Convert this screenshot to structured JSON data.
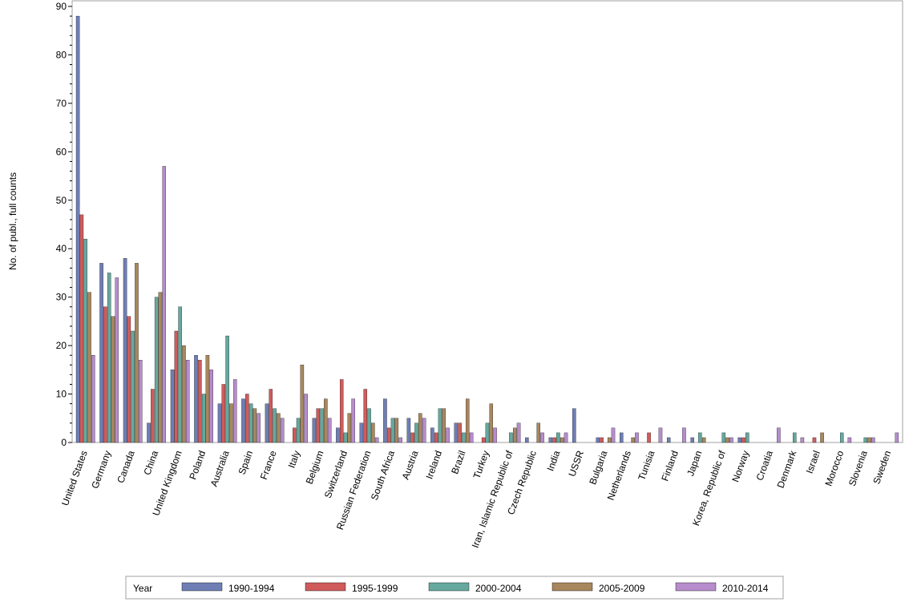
{
  "chart_data": {
    "type": "bar",
    "title": "",
    "xlabel": "",
    "ylabel": "No. of publ., full counts",
    "ylim": [
      0,
      90
    ],
    "yticks": [
      0,
      10,
      20,
      30,
      40,
      50,
      60,
      70,
      80,
      90
    ],
    "grid": false,
    "legend_position": "bottom",
    "legend_title": "Year",
    "categories": [
      "United States",
      "Germany",
      "Canada",
      "China",
      "United Kingdom",
      "Poland",
      "Australia",
      "Spain",
      "France",
      "Italy",
      "Belgium",
      "Switzerland",
      "Russian Federation",
      "South Africa",
      "Austria",
      "Ireland",
      "Brazil",
      "Turkey",
      "Iran, Islamic Republic of",
      "Czech Republic",
      "India",
      "USSR",
      "Bulgaria",
      "Netherlands",
      "Tunisia",
      "Finland",
      "Japan",
      "Korea, Republic of",
      "Norway",
      "Croatia",
      "Denmark",
      "Israel",
      "Morocco",
      "Slovenia",
      "Sweden"
    ],
    "series": [
      {
        "name": "1990-1994",
        "color": "#6f7fb5",
        "values": [
          88,
          37,
          38,
          4,
          15,
          18,
          8,
          9,
          8,
          0,
          5,
          3,
          4,
          9,
          5,
          3,
          4,
          0,
          0,
          1,
          1,
          7,
          1,
          2,
          0,
          1,
          1,
          0,
          1,
          0,
          0,
          0,
          0,
          0,
          0
        ]
      },
      {
        "name": "1995-1999",
        "color": "#d05b5b",
        "values": [
          47,
          28,
          26,
          11,
          23,
          17,
          12,
          10,
          11,
          3,
          7,
          13,
          11,
          3,
          2,
          2,
          4,
          1,
          0,
          0,
          1,
          0,
          1,
          0,
          2,
          0,
          0,
          0,
          1,
          0,
          0,
          1,
          0,
          0,
          0
        ]
      },
      {
        "name": "2000-2004",
        "color": "#66a89e",
        "values": [
          42,
          35,
          23,
          30,
          28,
          10,
          22,
          8,
          7,
          5,
          7,
          2,
          7,
          5,
          4,
          7,
          2,
          4,
          2,
          0,
          2,
          0,
          0,
          0,
          0,
          0,
          2,
          2,
          2,
          0,
          2,
          0,
          2,
          1,
          0
        ]
      },
      {
        "name": "2005-2009",
        "color": "#a8875f",
        "values": [
          31,
          26,
          37,
          31,
          20,
          18,
          8,
          7,
          6,
          16,
          9,
          6,
          4,
          5,
          6,
          7,
          9,
          8,
          3,
          4,
          1,
          0,
          1,
          1,
          0,
          0,
          1,
          1,
          0,
          0,
          0,
          2,
          0,
          1,
          0
        ]
      },
      {
        "name": "2010-2014",
        "color": "#b68ccd",
        "values": [
          18,
          34,
          17,
          57,
          17,
          15,
          13,
          6,
          5,
          10,
          5,
          9,
          1,
          1,
          5,
          3,
          2,
          3,
          4,
          2,
          2,
          0,
          3,
          2,
          3,
          3,
          0,
          1,
          0,
          3,
          1,
          0,
          1,
          1,
          2
        ]
      }
    ]
  }
}
